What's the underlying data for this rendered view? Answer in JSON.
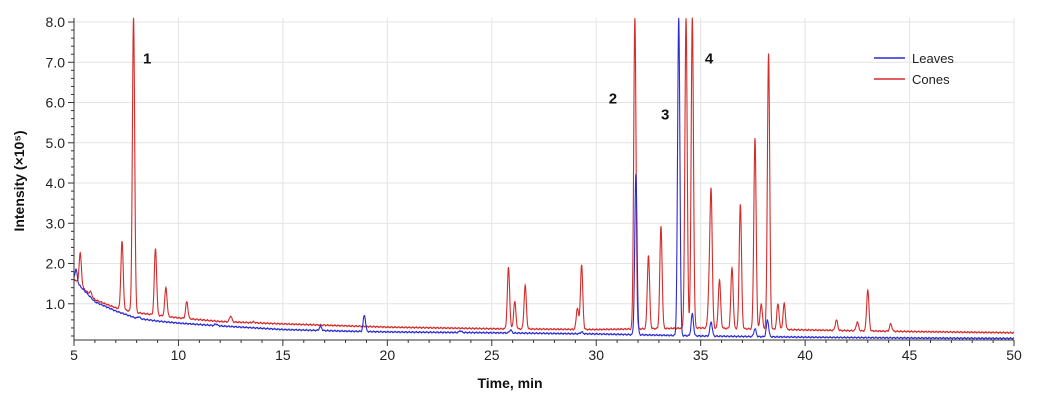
{
  "chart_data": {
    "type": "line",
    "title": "",
    "xlabel": "Time, min",
    "ylabel": "Intensity (×10⁵)",
    "xlim": [
      5,
      50
    ],
    "ylim": [
      0.1,
      8.1
    ],
    "grid": true,
    "legend_position": "top-right",
    "x_ticks": [
      5,
      10,
      15,
      20,
      25,
      30,
      35,
      40,
      45,
      50
    ],
    "x_tick_labels": [
      "5",
      "10",
      "15",
      "20",
      "25",
      "30",
      "35",
      "40",
      "45",
      "50"
    ],
    "y_ticks": [
      1.0,
      2.0,
      3.0,
      4.0,
      5.0,
      6.0,
      7.0,
      8.0
    ],
    "y_tick_labels": [
      "1.0",
      "2.0",
      "3.0",
      "4.0",
      "5.0",
      "6.0",
      "7.0",
      "8.0"
    ],
    "annotations": [
      {
        "text": "1",
        "x": 8.5,
        "y": 7.1
      },
      {
        "text": "2",
        "x": 30.8,
        "y": 6.1
      },
      {
        "text": "3",
        "x": 33.3,
        "y": 5.7
      },
      {
        "text": "4",
        "x": 35.4,
        "y": 7.1
      }
    ],
    "series": [
      {
        "name": "Leaves",
        "color": "#2b2bd0",
        "baseline": [
          [
            5,
            1.6
          ],
          [
            6,
            1.05
          ],
          [
            7,
            0.82
          ],
          [
            8,
            0.64
          ],
          [
            9,
            0.57
          ],
          [
            10,
            0.52
          ],
          [
            12,
            0.45
          ],
          [
            15,
            0.36
          ],
          [
            18,
            0.32
          ],
          [
            20,
            0.3
          ],
          [
            25,
            0.28
          ],
          [
            30,
            0.25
          ],
          [
            35,
            0.2
          ],
          [
            40,
            0.17
          ],
          [
            45,
            0.15
          ],
          [
            50,
            0.14
          ]
        ],
        "peaks": [
          {
            "t": 5.1,
            "h": 1.85
          },
          {
            "t": 7.8,
            "h": 0.66
          },
          {
            "t": 8.1,
            "h": 0.68
          },
          {
            "t": 11.8,
            "h": 0.5
          },
          {
            "t": 16.8,
            "h": 0.44
          },
          {
            "t": 18.9,
            "h": 0.72
          },
          {
            "t": 23.5,
            "h": 0.33
          },
          {
            "t": 25.9,
            "h": 0.35
          },
          {
            "t": 29.3,
            "h": 0.3
          },
          {
            "t": 31.9,
            "h": 4.22
          },
          {
            "t": 33.95,
            "h": 8.1
          },
          {
            "t": 34.6,
            "h": 0.75
          },
          {
            "t": 35.5,
            "h": 0.55
          },
          {
            "t": 37.6,
            "h": 0.38
          },
          {
            "t": 38.2,
            "h": 0.6
          }
        ]
      },
      {
        "name": "Cones",
        "color": "#d42b2b",
        "baseline": [
          [
            5,
            1.62
          ],
          [
            6,
            1.1
          ],
          [
            7,
            0.9
          ],
          [
            8,
            0.78
          ],
          [
            10,
            0.65
          ],
          [
            12,
            0.56
          ],
          [
            15,
            0.5
          ],
          [
            20,
            0.42
          ],
          [
            25,
            0.38
          ],
          [
            30,
            0.36
          ],
          [
            35,
            0.4
          ],
          [
            40,
            0.35
          ],
          [
            45,
            0.31
          ],
          [
            50,
            0.28
          ]
        ],
        "peaks": [
          {
            "t": 5.3,
            "h": 2.25
          },
          {
            "t": 5.8,
            "h": 1.3
          },
          {
            "t": 7.3,
            "h": 2.55
          },
          {
            "t": 7.85,
            "h": 8.1
          },
          {
            "t": 8.9,
            "h": 2.38
          },
          {
            "t": 9.4,
            "h": 1.4
          },
          {
            "t": 10.4,
            "h": 1.05
          },
          {
            "t": 12.5,
            "h": 0.7
          },
          {
            "t": 13.6,
            "h": 0.55
          },
          {
            "t": 25.8,
            "h": 1.9
          },
          {
            "t": 26.1,
            "h": 1.05
          },
          {
            "t": 26.6,
            "h": 1.45
          },
          {
            "t": 29.1,
            "h": 0.9
          },
          {
            "t": 29.3,
            "h": 1.97
          },
          {
            "t": 31.85,
            "h": 8.1
          },
          {
            "t": 32.5,
            "h": 2.2
          },
          {
            "t": 33.1,
            "h": 2.92
          },
          {
            "t": 34.3,
            "h": 8.1
          },
          {
            "t": 34.6,
            "h": 8.1
          },
          {
            "t": 35.4,
            "h": 1.2
          },
          {
            "t": 35.5,
            "h": 3.72
          },
          {
            "t": 35.9,
            "h": 1.6
          },
          {
            "t": 36.5,
            "h": 1.9
          },
          {
            "t": 36.9,
            "h": 3.48
          },
          {
            "t": 37.6,
            "h": 5.12
          },
          {
            "t": 37.9,
            "h": 1.0
          },
          {
            "t": 38.25,
            "h": 7.22
          },
          {
            "t": 38.7,
            "h": 1.0
          },
          {
            "t": 39.0,
            "h": 1.0
          },
          {
            "t": 41.5,
            "h": 0.6
          },
          {
            "t": 42.5,
            "h": 0.55
          },
          {
            "t": 43.0,
            "h": 1.35
          },
          {
            "t": 44.1,
            "h": 0.5
          }
        ]
      }
    ]
  }
}
